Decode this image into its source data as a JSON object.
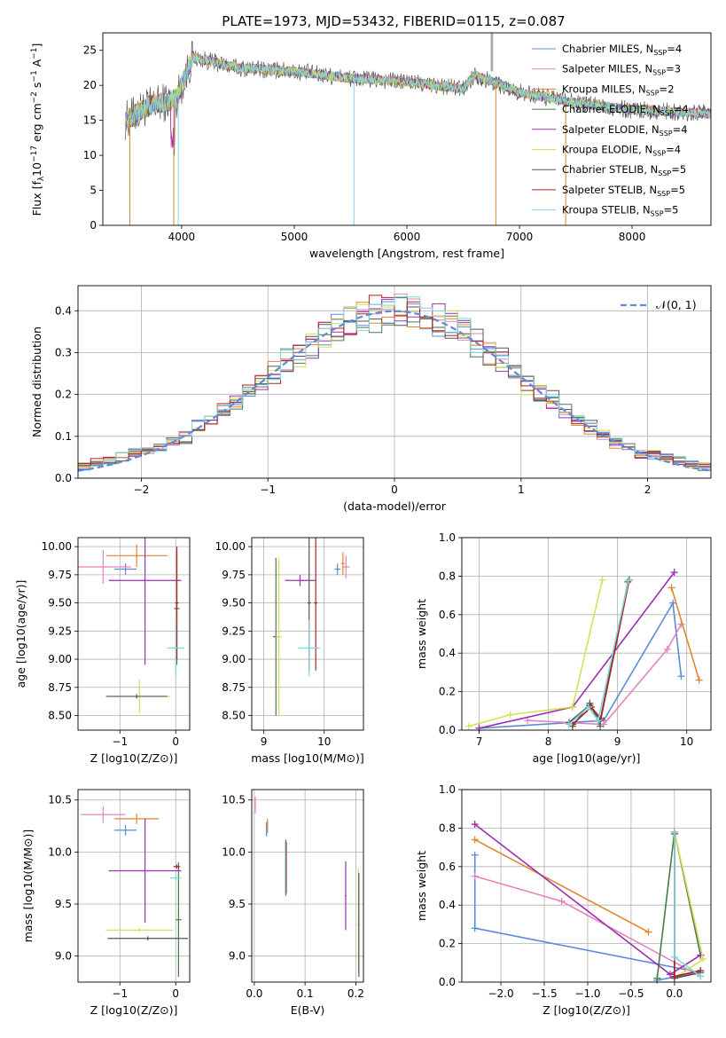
{
  "figure_title": "PLATE=1973, MJD=53432, FIBERID=0115, z=0.087",
  "colors": {
    "Chabrier MILES": "#5b8bd9",
    "Salpeter MILES": "#e583be",
    "Kroupa MILES": "#e0852b",
    "Chabrier ELODIE": "#4a7a4a",
    "Salpeter ELODIE": "#9b30b0",
    "Kroupa ELODIE": "#d4e157",
    "Chabrier STELIB": "#555555",
    "Salpeter STELIB": "#b22222",
    "Kroupa STELIB": "#7ed6df"
  },
  "chart_data": [
    {
      "id": "spectrum",
      "type": "line",
      "title": "PLATE=1973, MJD=53432, FIBERID=0115, z=0.087",
      "xlabel": "wavelength [Angstrom, rest frame]",
      "ylabel_parts": [
        "Flux [f",
        "λ",
        "10",
        "−17",
        " erg cm",
        "−2",
        " s",
        "−1",
        " A",
        "−1",
        "]"
      ],
      "xlim": [
        3300,
        8700
      ],
      "ylim": [
        0,
        27.5
      ],
      "xticks": [
        "4000",
        "5000",
        "6000",
        "7000",
        "8000"
      ],
      "yticks": [
        "0",
        "5",
        "10",
        "15",
        "20",
        "25"
      ],
      "grid": false,
      "legend_position": "top-right",
      "legend": [
        {
          "name": "Chabrier MILES",
          "nssp": "4"
        },
        {
          "name": "Salpeter MILES",
          "nssp": "3"
        },
        {
          "name": "Kroupa MILES",
          "nssp": "2"
        },
        {
          "name": "Chabrier ELODIE",
          "nssp": "4"
        },
        {
          "name": "Salpeter ELODIE",
          "nssp": "4"
        },
        {
          "name": "Kroupa ELODIE",
          "nssp": "4"
        },
        {
          "name": "Chabrier STELIB",
          "nssp": "5"
        },
        {
          "name": "Salpeter STELIB",
          "nssp": "5"
        },
        {
          "name": "Kroupa STELIB",
          "nssp": "5"
        }
      ],
      "nssp_prefix": "N",
      "nssp_sub": "SSP",
      "continuum_x": [
        3500,
        3700,
        3950,
        4100,
        4500,
        5000,
        5500,
        6000,
        6500,
        6600,
        7000,
        7500,
        8000,
        8700
      ],
      "continuum_y": [
        15,
        17,
        18,
        24,
        22.5,
        22,
        21,
        20.5,
        19.5,
        21.5,
        19,
        17.5,
        16.5,
        16
      ]
    },
    {
      "id": "residuals",
      "type": "area",
      "xlabel": "(data-model)/error",
      "ylabel": "Normed distribution",
      "xlim": [
        -2.5,
        2.5
      ],
      "ylim": [
        0,
        0.46
      ],
      "xticks": [
        "−2",
        "−1",
        "0",
        "1",
        "2"
      ],
      "yticks": [
        "0.0",
        "0.1",
        "0.2",
        "0.3",
        "0.4"
      ],
      "grid": true,
      "legend_position": "top-right",
      "reference_label": "𝒩(0, 1)"
    },
    {
      "id": "age-vs-Z",
      "type": "scatter",
      "xlabel": "Z [log10(Z/Z⊙)]",
      "ylabel": "age  [log10(age/yr)]",
      "xlim": [
        -1.75,
        0.25
      ],
      "ylim": [
        8.37,
        10.08
      ],
      "xticks": [
        "−1",
        "0"
      ],
      "yticks": [
        "8.50",
        "8.75",
        "9.00",
        "9.25",
        "9.50",
        "9.75",
        "10.00"
      ],
      "grid": true,
      "points": [
        {
          "model": "Chabrier MILES",
          "x": -0.9,
          "y": 9.8,
          "xerr": 0.2,
          "yerr": 0.05
        },
        {
          "model": "Salpeter MILES",
          "x": -1.3,
          "y": 9.82,
          "xerr": 0.5,
          "yerr": 0.15
        },
        {
          "model": "Kroupa MILES",
          "x": -0.7,
          "y": 9.92,
          "xerr": 0.55,
          "yerr": 0.1
        },
        {
          "model": "Chabrier ELODIE",
          "x": 0.02,
          "y": 9.45,
          "xerr": 0.05,
          "yerr": 0.5
        },
        {
          "model": "Salpeter ELODIE",
          "x": -0.55,
          "y": 9.7,
          "xerr": 0.65,
          "yerr": 0.75
        },
        {
          "model": "Kroupa ELODIE",
          "x": -0.65,
          "y": 8.67,
          "xerr": 0.55,
          "yerr": 0.15
        },
        {
          "model": "Chabrier STELIB",
          "x": -0.7,
          "y": 8.67,
          "xerr": 0.55,
          "yerr": 0.02
        },
        {
          "model": "Salpeter STELIB",
          "x": 0.02,
          "y": 9.5,
          "xerr": 0.03,
          "yerr": 0.5
        },
        {
          "model": "Kroupa STELIB",
          "x": 0.0,
          "y": 9.1,
          "xerr": 0.15,
          "yerr": 0.25
        }
      ]
    },
    {
      "id": "age-vs-mass",
      "type": "scatter",
      "xlabel": "mass [log10(M/M⊙)]",
      "ylabel": "",
      "xlim": [
        8.8,
        10.65
      ],
      "ylim": [
        8.37,
        10.08
      ],
      "xticks": [
        "9",
        "10"
      ],
      "yticks": [
        "8.50",
        "8.75",
        "9.00",
        "9.25",
        "9.50",
        "9.75",
        "10.00"
      ],
      "grid": true,
      "points": [
        {
          "model": "Chabrier MILES",
          "x": 10.22,
          "y": 9.8,
          "xerr": 0.05,
          "yerr": 0.05
        },
        {
          "model": "Salpeter MILES",
          "x": 10.36,
          "y": 9.82,
          "xerr": 0.06,
          "yerr": 0.1
        },
        {
          "model": "Kroupa MILES",
          "x": 10.31,
          "y": 9.85,
          "xerr": 0.03,
          "yerr": 0.1
        },
        {
          "model": "Chabrier ELODIE",
          "x": 9.2,
          "y": 9.2,
          "xerr": 0.05,
          "yerr": 0.7
        },
        {
          "model": "Salpeter ELODIE",
          "x": 9.6,
          "y": 9.7,
          "xerr": 0.25,
          "yerr": 0.05
        },
        {
          "model": "Kroupa ELODIE",
          "x": 9.25,
          "y": 9.2,
          "xerr": 0.05,
          "yerr": 0.7
        },
        {
          "model": "Chabrier STELIB",
          "x": 9.75,
          "y": 9.5,
          "xerr": 0.03,
          "yerr": 0.6
        },
        {
          "model": "Salpeter STELIB",
          "x": 9.86,
          "y": 9.5,
          "xerr": 0.03,
          "yerr": 0.6
        },
        {
          "model": "Kroupa STELIB",
          "x": 9.75,
          "y": 9.1,
          "xerr": 0.18,
          "yerr": 0.25
        }
      ]
    },
    {
      "id": "mass-weight-vs-age",
      "type": "line",
      "xlabel": "age  [log10(age/yr)]",
      "ylabel": "mass weight",
      "xlim": [
        6.75,
        10.35
      ],
      "ylim": [
        0,
        1
      ],
      "xticks": [
        "7",
        "8",
        "9",
        "10"
      ],
      "yticks": [
        "0.0",
        "0.2",
        "0.4",
        "0.6",
        "0.8",
        "1.0"
      ],
      "grid": true,
      "series": [
        {
          "model": "Chabrier MILES",
          "x": [
            7.0,
            8.8,
            9.8,
            9.92
          ],
          "y": [
            0.01,
            0.05,
            0.66,
            0.28
          ]
        },
        {
          "model": "Salpeter MILES",
          "x": [
            7.7,
            8.8,
            9.72,
            9.92
          ],
          "y": [
            0.05,
            0.03,
            0.42,
            0.55
          ]
        },
        {
          "model": "Kroupa MILES",
          "x": [
            9.78,
            10.18
          ],
          "y": [
            0.74,
            0.26
          ]
        },
        {
          "model": "Chabrier ELODIE",
          "x": [
            8.35,
            8.6,
            8.75
          ],
          "y": [
            0.02,
            0.14,
            0.02
          ]
        },
        {
          "model": "Salpeter ELODIE",
          "x": [
            7.0,
            8.35,
            9.82
          ],
          "y": [
            0.01,
            0.12,
            0.82
          ]
        },
        {
          "model": "Kroupa ELODIE",
          "x": [
            6.85,
            7.45,
            8.35,
            8.78
          ],
          "y": [
            0.02,
            0.08,
            0.12,
            0.78
          ]
        },
        {
          "model": "Chabrier STELIB",
          "x": [
            8.3,
            8.6,
            8.75,
            9.15
          ],
          "y": [
            0.04,
            0.13,
            0.05,
            0.77
          ]
        },
        {
          "model": "Salpeter STELIB",
          "x": [
            8.35,
            8.62,
            8.76,
            9.17
          ],
          "y": [
            0.03,
            0.12,
            0.06,
            0.78
          ]
        },
        {
          "model": "Kroupa STELIB",
          "x": [
            8.3,
            8.58,
            8.72,
            9.16
          ],
          "y": [
            0.03,
            0.12,
            0.05,
            0.78
          ]
        }
      ]
    },
    {
      "id": "mass-vs-Z",
      "type": "scatter",
      "xlabel": "Z [log10(Z/Z⊙)]",
      "ylabel": "mass [log10(M/M⊙)]",
      "xlim": [
        -1.75,
        0.25
      ],
      "ylim": [
        8.75,
        10.6
      ],
      "xticks": [
        "−1",
        "0"
      ],
      "yticks": [
        "9.0",
        "9.5",
        "10.0",
        "10.5"
      ],
      "grid": true,
      "points": [
        {
          "model": "Chabrier MILES",
          "x": -0.9,
          "y": 10.21,
          "xerr": 0.2,
          "yerr": 0.05
        },
        {
          "model": "Salpeter MILES",
          "x": -1.3,
          "y": 10.36,
          "xerr": 0.4,
          "yerr": 0.08
        },
        {
          "model": "Kroupa MILES",
          "x": -0.7,
          "y": 10.32,
          "xerr": 0.4,
          "yerr": 0.05
        },
        {
          "model": "Chabrier ELODIE",
          "x": 0.05,
          "y": 9.35,
          "xerr": 0.05,
          "yerr": 0.55
        },
        {
          "model": "Salpeter ELODIE",
          "x": -0.55,
          "y": 9.82,
          "xerr": 0.65,
          "yerr": 0.5
        },
        {
          "model": "Kroupa ELODIE",
          "x": -0.65,
          "y": 9.25,
          "xerr": 0.6,
          "yerr": 0.02
        },
        {
          "model": "Chabrier STELIB",
          "x": -0.5,
          "y": 9.17,
          "xerr": 0.72,
          "yerr": 0.02
        },
        {
          "model": "Salpeter STELIB",
          "x": 0.02,
          "y": 9.86,
          "xerr": 0.06,
          "yerr": 0.02
        },
        {
          "model": "Kroupa STELIB",
          "x": 0.0,
          "y": 9.75,
          "xerr": 0.1,
          "yerr": 0.02
        }
      ]
    },
    {
      "id": "mass-vs-EBV",
      "type": "scatter",
      "xlabel": "E(B-V)",
      "ylabel": "",
      "xlim": [
        -0.005,
        0.215
      ],
      "ylim": [
        8.75,
        10.6
      ],
      "xticks": [
        "0.0",
        "0.1",
        "0.2"
      ],
      "yticks": [
        "9.0",
        "9.5",
        "10.0",
        "10.5"
      ],
      "grid": true,
      "points": [
        {
          "model": "Chabrier MILES",
          "x": 0.024,
          "y": 10.22,
          "yerr": 0.07
        },
        {
          "model": "Salpeter MILES",
          "x": 0.002,
          "y": 10.45,
          "yerr": 0.08
        },
        {
          "model": "Kroupa MILES",
          "x": 0.026,
          "y": 10.25,
          "yerr": 0.07
        },
        {
          "model": "Chabrier ELODIE",
          "x": 0.062,
          "y": 9.85,
          "yerr": 0.27
        },
        {
          "model": "Salpeter ELODIE",
          "x": 0.18,
          "y": 9.58,
          "yerr": 0.33
        },
        {
          "model": "Kroupa ELODIE",
          "x": 0.205,
          "y": 9.35,
          "yerr": 0.5
        },
        {
          "model": "Chabrier STELIB",
          "x": 0.206,
          "y": 9.3,
          "yerr": 0.5
        },
        {
          "model": "Salpeter STELIB",
          "x": 0.063,
          "y": 9.85,
          "yerr": 0.25
        },
        {
          "model": "Kroupa STELIB",
          "x": 0.061,
          "y": 9.85,
          "yerr": 0.25
        }
      ]
    },
    {
      "id": "mass-weight-vs-Z",
      "type": "line",
      "xlabel": "Z [log10(Z/Z⊙)]",
      "ylabel": "mass weight",
      "xlim": [
        -2.45,
        0.42
      ],
      "ylim": [
        0,
        1
      ],
      "xticks": [
        "−2.0",
        "−1.5",
        "−1.0",
        "−0.5",
        "0.0"
      ],
      "yticks": [
        "0.0",
        "0.2",
        "0.4",
        "0.6",
        "0.8",
        "1.0"
      ],
      "grid": true,
      "series": [
        {
          "model": "Chabrier MILES",
          "x": [
            -2.3,
            -2.3,
            0.3,
            -0.2
          ],
          "y": [
            0.66,
            0.28,
            0.05,
            0.01
          ]
        },
        {
          "model": "Salpeter MILES",
          "x": [
            -2.3,
            -1.3,
            0.3
          ],
          "y": [
            0.55,
            0.42,
            0.03
          ]
        },
        {
          "model": "Kroupa MILES",
          "x": [
            -2.3,
            -0.3
          ],
          "y": [
            0.74,
            0.26
          ]
        },
        {
          "model": "Chabrier ELODIE",
          "x": [
            -0.2,
            0.0,
            0.3
          ],
          "y": [
            0.02,
            0.78,
            0.14
          ]
        },
        {
          "model": "Salpeter ELODIE",
          "x": [
            -2.3,
            -0.05,
            0.3
          ],
          "y": [
            0.82,
            0.04,
            0.14
          ]
        },
        {
          "model": "Kroupa ELODIE",
          "x": [
            0.0,
            0.33,
            0.0
          ],
          "y": [
            0.78,
            0.12,
            0.02
          ]
        },
        {
          "model": "Chabrier STELIB",
          "x": [
            0.0,
            0.0,
            0.3
          ],
          "y": [
            0.77,
            0.02,
            0.05
          ]
        },
        {
          "model": "Salpeter STELIB",
          "x": [
            0.0,
            0.0,
            0.3
          ],
          "y": [
            0.78,
            0.03,
            0.06
          ]
        },
        {
          "model": "Kroupa STELIB",
          "x": [
            0.0,
            0.0,
            0.3
          ],
          "y": [
            0.78,
            0.13,
            0.03
          ]
        }
      ]
    }
  ]
}
